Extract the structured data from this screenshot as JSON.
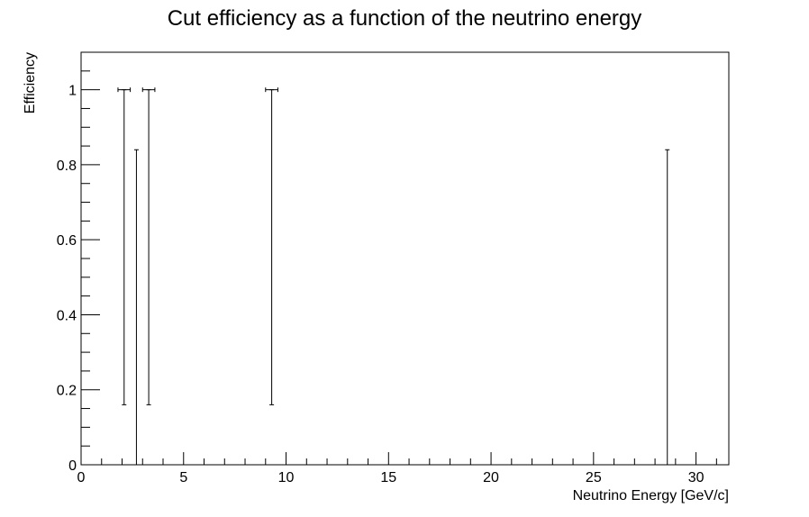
{
  "chart_data": {
    "type": "scatter",
    "title": "Cut efficiency as a function of the neutrino energy",
    "xlabel": "Neutrino Energy [GeV/c]",
    "ylabel": "Efficiency",
    "xlim": [
      0,
      31.6
    ],
    "ylim": [
      0,
      1.1
    ],
    "x_ticks": [
      "0",
      "5",
      "10",
      "15",
      "20",
      "25",
      "30"
    ],
    "y_ticks": [
      "0",
      "0.2",
      "0.4",
      "0.6",
      "0.8",
      "1"
    ],
    "grid": false,
    "legend": "none",
    "series": [
      {
        "points": [
          {
            "x": 2.1,
            "y": 1.0,
            "y_low": 0.16,
            "y_high": 1.0,
            "x_err": 0.3
          },
          {
            "x": 2.7,
            "y": 0.0,
            "y_low": 0.0,
            "y_high": 0.84,
            "x_err": 0.0
          },
          {
            "x": 3.3,
            "y": 1.0,
            "y_low": 0.16,
            "y_high": 1.0,
            "x_err": 0.3
          },
          {
            "x": 9.3,
            "y": 1.0,
            "y_low": 0.16,
            "y_high": 1.0,
            "x_err": 0.3
          },
          {
            "x": 28.6,
            "y": 0.0,
            "y_low": 0.0,
            "y_high": 0.84,
            "x_err": 0.0
          }
        ]
      }
    ]
  }
}
